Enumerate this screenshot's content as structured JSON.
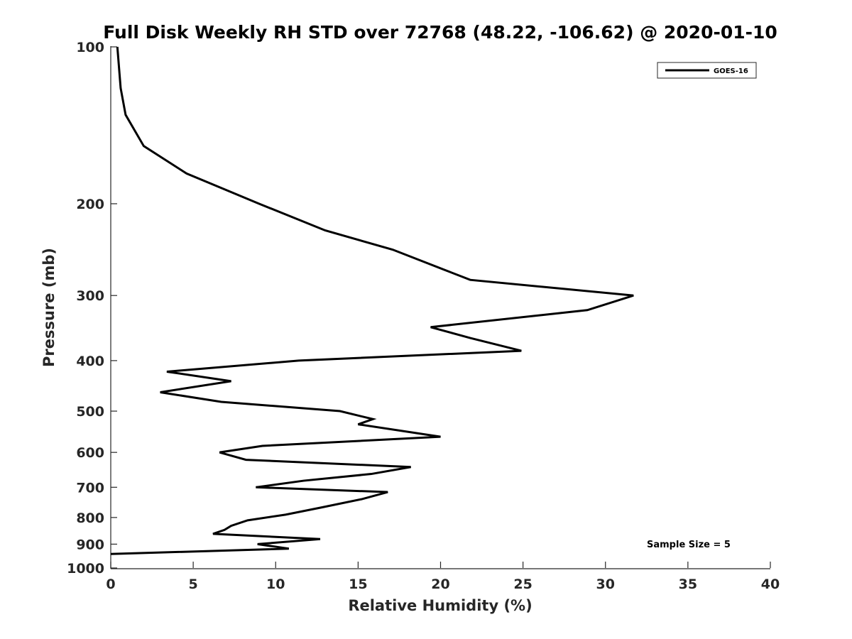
{
  "chart_data": {
    "type": "line",
    "title": "Full Disk Weekly RH STD over 72768 (48.22, -106.62) @ 2020-01-10",
    "xlabel": "Relative Humidity (%)",
    "ylabel": "Pressure (mb)",
    "xlim": [
      0,
      40
    ],
    "ylim": [
      1000,
      100
    ],
    "y_scale": "log",
    "y_reversed": true,
    "x_ticks": [
      0,
      5,
      10,
      15,
      20,
      25,
      30,
      35,
      40
    ],
    "y_ticks": [
      100,
      200,
      300,
      400,
      500,
      600,
      700,
      800,
      900,
      1000
    ],
    "grid": false,
    "legend_position": "top-right",
    "series": [
      {
        "name": "GOES-16",
        "color": "#000000",
        "points": [
          [
            0.4,
            100
          ],
          [
            0.6,
            120
          ],
          [
            0.9,
            135
          ],
          [
            2.0,
            155
          ],
          [
            4.6,
            175
          ],
          [
            9.0,
            200
          ],
          [
            13.0,
            225
          ],
          [
            17.1,
            245
          ],
          [
            21.8,
            280
          ],
          [
            31.7,
            300
          ],
          [
            28.9,
            320
          ],
          [
            19.4,
            345
          ],
          [
            21.8,
            362
          ],
          [
            24.9,
            383
          ],
          [
            11.4,
            400
          ],
          [
            3.4,
            420
          ],
          [
            7.3,
            438
          ],
          [
            3.0,
            460
          ],
          [
            6.7,
            480
          ],
          [
            13.9,
            500
          ],
          [
            15.9,
            518
          ],
          [
            15.0,
            530
          ],
          [
            20.0,
            560
          ],
          [
            9.2,
            583
          ],
          [
            6.6,
            600
          ],
          [
            8.2,
            620
          ],
          [
            18.2,
            640
          ],
          [
            15.8,
            660
          ],
          [
            11.7,
            680
          ],
          [
            8.8,
            700
          ],
          [
            16.8,
            715
          ],
          [
            15.2,
            738
          ],
          [
            12.8,
            765
          ],
          [
            10.6,
            790
          ],
          [
            8.3,
            810
          ],
          [
            7.3,
            830
          ],
          [
            6.9,
            845
          ],
          [
            6.2,
            860
          ],
          [
            12.7,
            880
          ],
          [
            8.9,
            900
          ],
          [
            10.8,
            918
          ],
          [
            0.0,
            940
          ]
        ]
      }
    ],
    "annotation": "Sample Size = 5"
  }
}
